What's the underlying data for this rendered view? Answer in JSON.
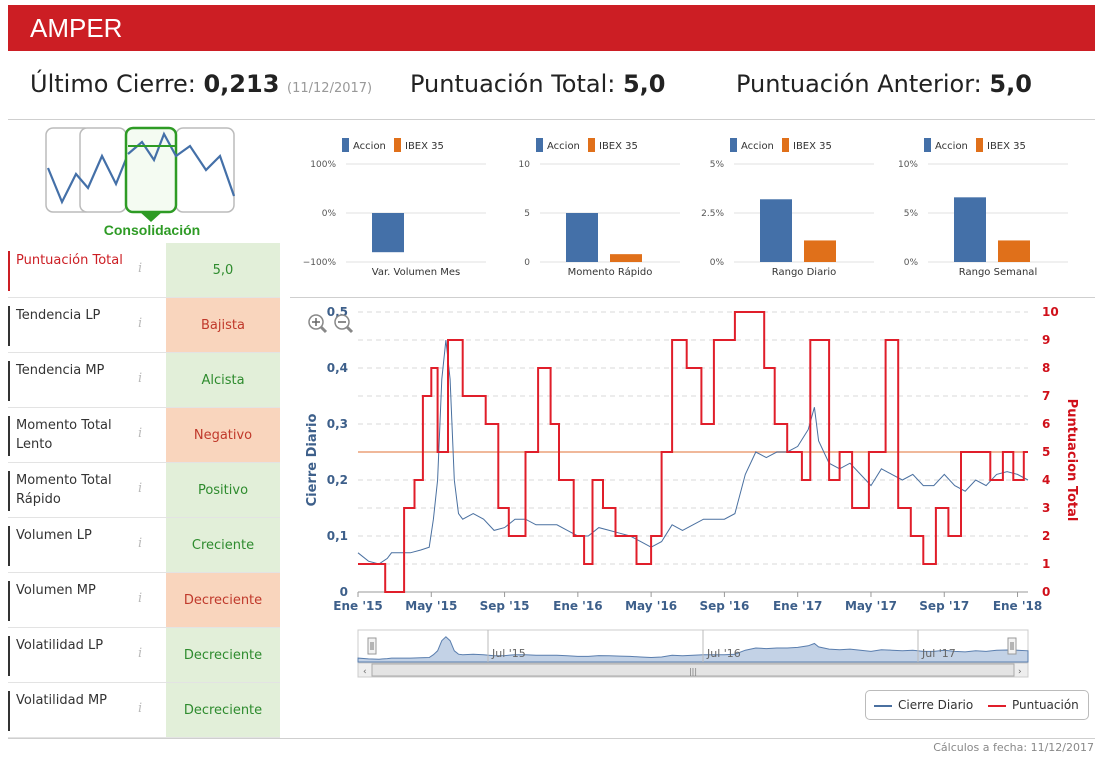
{
  "header": {
    "title": "AMPER"
  },
  "stats": {
    "last_close_label": "Último Cierre:",
    "last_close_value": "0,213",
    "last_close_date": "(11/12/2017)",
    "total_label": "Puntuación Total:",
    "total_value": "5,0",
    "previous_label": "Puntuación Anterior:",
    "previous_value": "5,0"
  },
  "pattern": {
    "label": "Consolidación",
    "color": "#2e9b25"
  },
  "rows": [
    {
      "label": "Puntuación Total",
      "value": "5,0",
      "status": "green",
      "accent": "red"
    },
    {
      "label": "Tendencia LP",
      "value": "Bajista",
      "status": "orange"
    },
    {
      "label": "Tendencia MP",
      "value": "Alcista",
      "status": "green"
    },
    {
      "label": "Momento Total Lento",
      "value": "Negativo",
      "status": "orange"
    },
    {
      "label": "Momento Total Rápido",
      "value": "Positivo",
      "status": "green"
    },
    {
      "label": "Volumen LP",
      "value": "Creciente",
      "status": "green"
    },
    {
      "label": "Volumen MP",
      "value": "Decreciente",
      "status": "orange"
    },
    {
      "label": "Volatilidad LP",
      "value": "Decreciente",
      "status": "green"
    },
    {
      "label": "Volatilidad MP",
      "value": "Decreciente",
      "status": "green"
    }
  ],
  "info_icon": "i",
  "chart_data": [
    {
      "type": "bar",
      "title": "Var. Volumen Mes",
      "series": [
        {
          "name": "Accion",
          "color": "#4470a8",
          "values": [
            -80
          ]
        },
        {
          "name": "IBEX 35",
          "color": "#e0701a",
          "values": [
            0
          ]
        }
      ],
      "ylim": [
        -100,
        100
      ],
      "yticks": [
        "100%",
        "0%",
        "−100%"
      ]
    },
    {
      "type": "bar",
      "title": "Momento Rápido",
      "series": [
        {
          "name": "Accion",
          "color": "#4470a8",
          "values": [
            5
          ]
        },
        {
          "name": "IBEX 35",
          "color": "#e0701a",
          "values": [
            0.8
          ]
        }
      ],
      "ylim": [
        0,
        10
      ],
      "yticks": [
        "10",
        "5",
        "0"
      ]
    },
    {
      "type": "bar",
      "title": "Rango Diario",
      "series": [
        {
          "name": "Accion",
          "color": "#4470a8",
          "values": [
            3.2
          ]
        },
        {
          "name": "IBEX 35",
          "color": "#e0701a",
          "values": [
            1.1
          ]
        }
      ],
      "ylim": [
        0,
        5
      ],
      "yticks": [
        "5%",
        "2.5%",
        "0%"
      ]
    },
    {
      "type": "bar",
      "title": "Rango Semanal",
      "series": [
        {
          "name": "Accion",
          "color": "#4470a8",
          "values": [
            6.6
          ]
        },
        {
          "name": "IBEX 35",
          "color": "#e0701a",
          "values": [
            2.2
          ]
        }
      ],
      "ylim": [
        0,
        10
      ],
      "yticks": [
        "10%",
        "5%",
        "0%"
      ]
    },
    {
      "type": "line",
      "x_ticks": [
        "Ene '15",
        "May '15",
        "Sep '15",
        "Ene '16",
        "May '16",
        "Sep '16",
        "Ene '17",
        "May '17",
        "Sep '17",
        "Ene '18"
      ],
      "y_left": {
        "label": "Cierre Diario",
        "ticks": [
          "0",
          "0,1",
          "0,2",
          "0,3",
          "0,4",
          "0,5"
        ],
        "ylim": [
          0,
          0.5
        ]
      },
      "y_right": {
        "label": "Puntuacion Total",
        "ticks": [
          "0",
          "1",
          "2",
          "3",
          "4",
          "5",
          "6",
          "7",
          "8",
          "9",
          "10"
        ],
        "ylim": [
          0,
          10
        ]
      },
      "reference_line": 5,
      "series": [
        {
          "name": "Cierre Diario",
          "color": "#4a70a0",
          "points": [
            [
              0,
              0.07
            ],
            [
              0.5,
              0.055
            ],
            [
              1,
              0.05
            ],
            [
              1.4,
              0.06
            ],
            [
              1.6,
              0.07
            ],
            [
              2,
              0.07
            ],
            [
              2.5,
              0.07
            ],
            [
              3,
              0.075
            ],
            [
              3.4,
              0.08
            ],
            [
              3.6,
              0.13
            ],
            [
              3.8,
              0.2
            ],
            [
              4,
              0.38
            ],
            [
              4.2,
              0.45
            ],
            [
              4.4,
              0.38
            ],
            [
              4.6,
              0.2
            ],
            [
              4.8,
              0.14
            ],
            [
              5,
              0.13
            ],
            [
              5.5,
              0.14
            ],
            [
              6,
              0.13
            ],
            [
              6.5,
              0.11
            ],
            [
              7,
              0.115
            ],
            [
              7.5,
              0.13
            ],
            [
              8,
              0.13
            ],
            [
              8.5,
              0.12
            ],
            [
              9,
              0.12
            ],
            [
              9.5,
              0.12
            ],
            [
              10,
              0.11
            ],
            [
              10.5,
              0.1
            ],
            [
              11,
              0.1
            ],
            [
              11.5,
              0.115
            ],
            [
              12,
              0.11
            ],
            [
              12.5,
              0.105
            ],
            [
              13,
              0.1
            ],
            [
              13.5,
              0.09
            ],
            [
              14,
              0.08
            ],
            [
              14.5,
              0.09
            ],
            [
              15,
              0.12
            ],
            [
              15.5,
              0.11
            ],
            [
              16,
              0.12
            ],
            [
              16.5,
              0.13
            ],
            [
              17,
              0.13
            ],
            [
              17.5,
              0.13
            ],
            [
              18,
              0.14
            ],
            [
              18.5,
              0.21
            ],
            [
              19,
              0.25
            ],
            [
              19.5,
              0.24
            ],
            [
              20,
              0.25
            ],
            [
              20.5,
              0.25
            ],
            [
              21,
              0.26
            ],
            [
              21.5,
              0.29
            ],
            [
              21.8,
              0.33
            ],
            [
              22,
              0.27
            ],
            [
              22.5,
              0.23
            ],
            [
              23,
              0.22
            ],
            [
              23.5,
              0.23
            ],
            [
              24,
              0.21
            ],
            [
              24.5,
              0.19
            ],
            [
              25,
              0.22
            ],
            [
              25.5,
              0.21
            ],
            [
              26,
              0.2
            ],
            [
              26.5,
              0.21
            ],
            [
              27,
              0.19
            ],
            [
              27.5,
              0.19
            ],
            [
              28,
              0.21
            ],
            [
              28.5,
              0.19
            ],
            [
              29,
              0.18
            ],
            [
              29.5,
              0.2
            ],
            [
              30,
              0.19
            ],
            [
              30.5,
              0.21
            ],
            [
              31,
              0.215
            ],
            [
              31.5,
              0.21
            ],
            [
              32,
              0.2
            ]
          ]
        },
        {
          "name": "Puntuación",
          "color": "#e01e2a",
          "steps": [
            [
              0,
              1
            ],
            [
              1.3,
              0
            ],
            [
              2.2,
              3
            ],
            [
              2.7,
              4
            ],
            [
              3.1,
              7
            ],
            [
              3.5,
              8
            ],
            [
              3.8,
              5
            ],
            [
              4.3,
              9
            ],
            [
              5,
              7
            ],
            [
              5.6,
              7
            ],
            [
              6.1,
              6
            ],
            [
              6.7,
              3
            ],
            [
              7.2,
              2
            ],
            [
              8,
              5
            ],
            [
              8.6,
              8
            ],
            [
              9.2,
              6
            ],
            [
              9.6,
              4
            ],
            [
              10.3,
              2
            ],
            [
              10.8,
              1
            ],
            [
              11.2,
              4
            ],
            [
              11.7,
              3
            ],
            [
              12.3,
              2
            ],
            [
              12.8,
              2
            ],
            [
              13.3,
              1
            ],
            [
              14,
              2
            ],
            [
              14.5,
              5
            ],
            [
              15,
              9
            ],
            [
              15.7,
              8
            ],
            [
              16.4,
              6
            ],
            [
              17,
              9
            ],
            [
              18,
              10
            ],
            [
              19.4,
              8
            ],
            [
              19.9,
              6
            ],
            [
              20.5,
              5
            ],
            [
              21.2,
              4
            ],
            [
              21.6,
              9
            ],
            [
              22.5,
              4
            ],
            [
              23,
              5
            ],
            [
              23.6,
              3
            ],
            [
              24.4,
              5
            ],
            [
              25.2,
              9
            ],
            [
              25.8,
              3
            ],
            [
              26.4,
              2
            ],
            [
              27,
              1
            ],
            [
              27.6,
              3
            ],
            [
              28.2,
              2
            ],
            [
              28.8,
              5
            ],
            [
              29.5,
              5
            ],
            [
              30.2,
              4
            ],
            [
              30.8,
              5
            ],
            [
              31.3,
              4
            ],
            [
              31.8,
              5
            ]
          ]
        }
      ],
      "navigator": {
        "labels": [
          "Jul '15",
          "Jul '16",
          "Jul '17"
        ]
      }
    }
  ],
  "legend": {
    "items": [
      {
        "name": "Cierre Diario",
        "color": "#4a70a0"
      },
      {
        "name": "Puntuación",
        "color": "#e01e2a"
      }
    ]
  },
  "footer": {
    "text": "Cálculos a fecha: 11/12/2017"
  }
}
